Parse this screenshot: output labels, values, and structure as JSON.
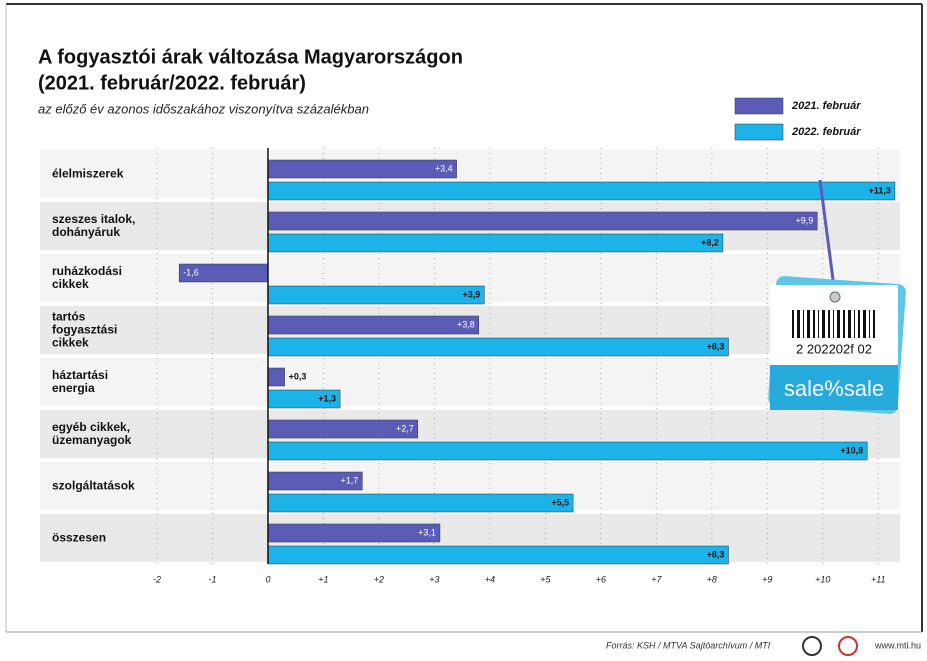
{
  "chart_data": {
    "type": "bar",
    "orientation": "horizontal",
    "title": "A fogyasztói árak változása Magyarországon",
    "title_line2": "(2021. február/2022. február)",
    "subtitle": "az előző év azonos időszakához viszonyítva százalékban",
    "categories": [
      "élelmiszerek",
      "szeszes italok,\ndohányáruk",
      "ruházkodási\ncikkek",
      "tartós\nfogyasztási\ncikkek",
      "háztartási\nenergia",
      "egyéb cikkek,\nüzemanyagok",
      "szolgáltatások",
      "összesen"
    ],
    "series": [
      {
        "name": "2021. február",
        "color": "#5b5cb6",
        "values": [
          3.4,
          9.9,
          -1.6,
          3.8,
          0.3,
          2.7,
          1.7,
          3.1
        ],
        "value_labels": [
          "+3,4",
          "+9,9",
          "-1,6",
          "+3,8",
          "+0,3",
          "+2,7",
          "+1,7",
          "+3,1"
        ]
      },
      {
        "name": "2022. február",
        "color": "#1cb3e8",
        "values": [
          11.3,
          8.2,
          3.9,
          8.3,
          1.3,
          10.8,
          5.5,
          8.3
        ],
        "value_labels": [
          "+11,3",
          "+8,2",
          "+3,9",
          "+8,3",
          "+1,3",
          "+10,8",
          "+5,5",
          "+8,3"
        ]
      }
    ],
    "xlim": [
      -2,
      11.5
    ],
    "xticks": [
      -2,
      -1,
      0,
      {
        "value": 1,
        "label": "+1"
      },
      {
        "value": 2,
        "label": "+2"
      },
      {
        "value": 3,
        "label": "+3"
      },
      {
        "value": 4,
        "label": "+4"
      },
      {
        "value": 5,
        "label": "+5"
      },
      {
        "value": 6,
        "label": "+6"
      },
      {
        "value": 7,
        "label": "+7"
      },
      {
        "value": 8,
        "label": "+8"
      },
      {
        "value": 9,
        "label": "+9"
      },
      {
        "value": 10,
        "label": "+10"
      },
      {
        "value": 11,
        "label": "+11"
      }
    ],
    "grid": true,
    "legend": "top-right",
    "tag": {
      "barcode": "2 202202f 02",
      "label": "sale%sale"
    },
    "source": "Forrás: KSH / MTVA Sajtóarchívum / MTI",
    "website": "www.mti.hu"
  }
}
